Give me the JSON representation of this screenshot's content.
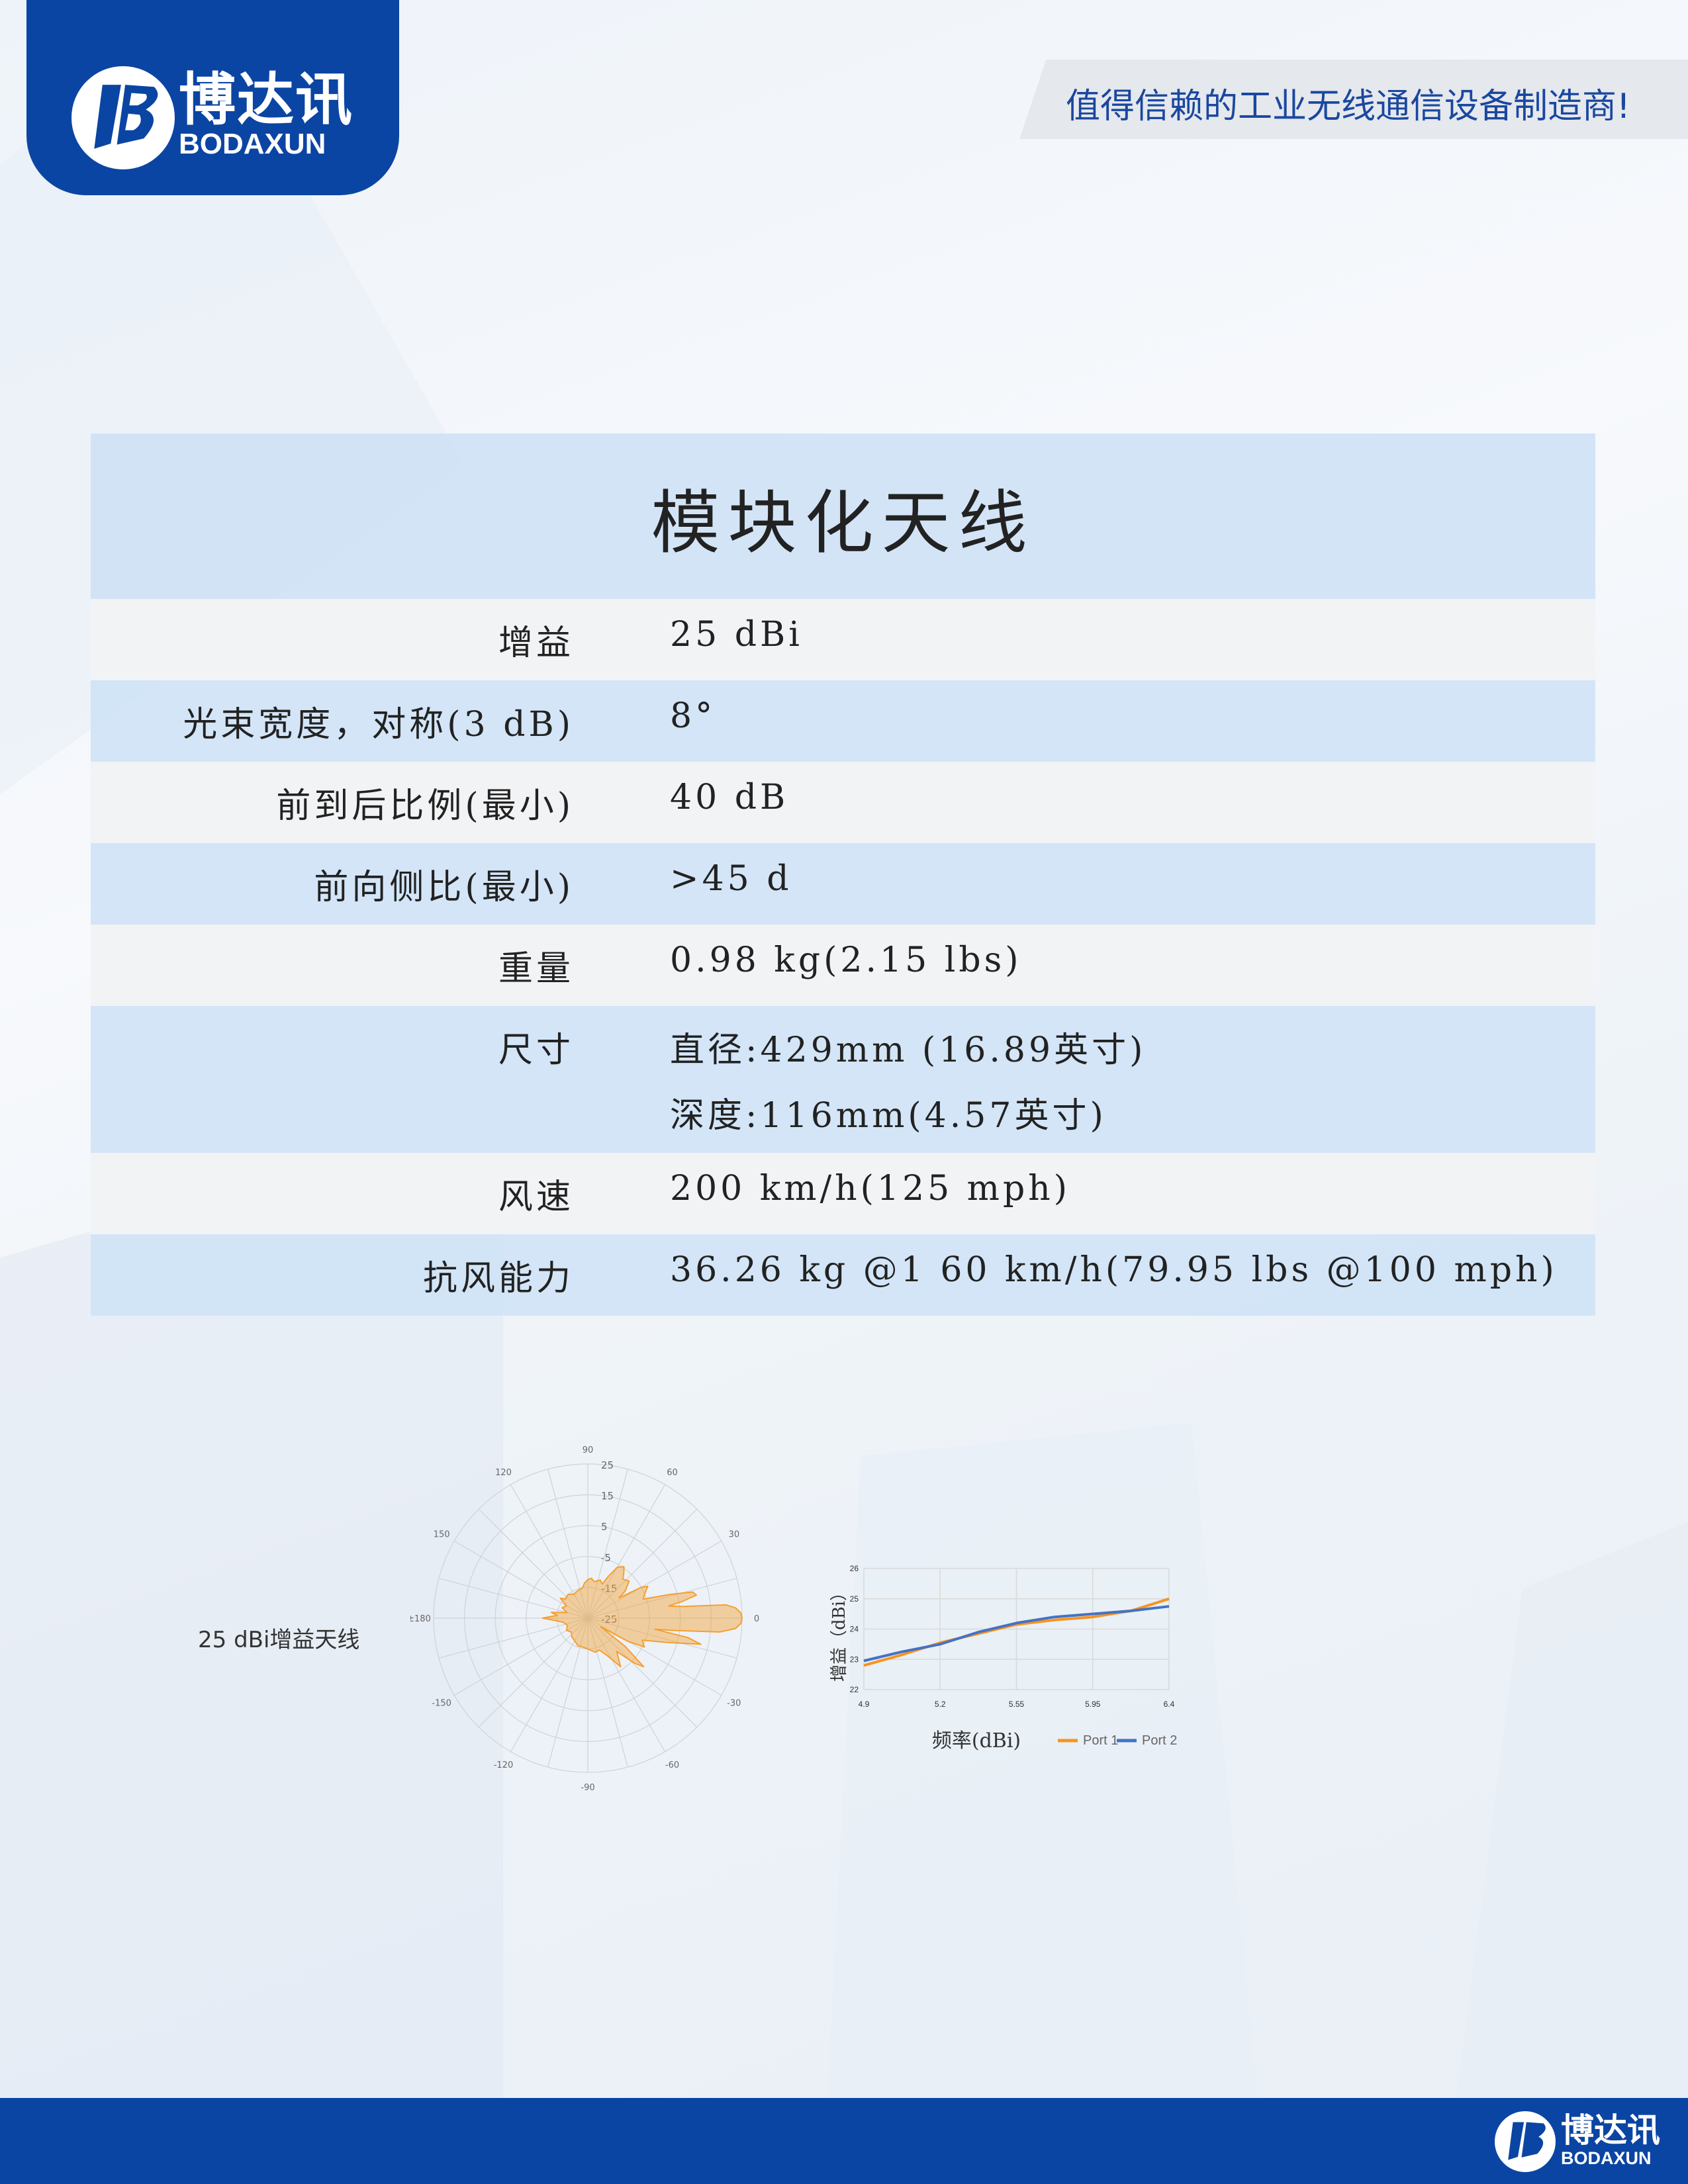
{
  "header": {
    "logo": {
      "cn": "博达讯",
      "en": "BODAXUN"
    },
    "tagline": "值得信赖的工业无线通信设备制造商!"
  },
  "spec_table": {
    "title": "模块化天线",
    "rows": [
      {
        "label": "增益",
        "values": [
          "25 dBi"
        ]
      },
      {
        "label": "光束宽度，对称(3 dB)",
        "values": [
          "8°"
        ]
      },
      {
        "label": "前到后比例(最小)",
        "values": [
          "40 dB"
        ]
      },
      {
        "label": "前向侧比(最小)",
        "values": [
          ">45 d"
        ]
      },
      {
        "label": "重量",
        "values": [
          "0.98 kg(2.15 lbs)"
        ]
      },
      {
        "label": "尺寸",
        "values": [
          "直径:429mm (16.89英寸)",
          "深度:116mm(4.57英寸)"
        ]
      },
      {
        "label": "风速",
        "values": [
          "200 km/h(125 mph)"
        ]
      },
      {
        "label": "抗风能力",
        "values": [
          "36.26 kg @1 60 km/h(79.95 lbs @100 mph)"
        ]
      }
    ]
  },
  "chart_data": [
    {
      "type": "polar",
      "caption": "25 dBi增益天线",
      "angle_ticks": [
        "90",
        "60",
        "30",
        "0",
        "-30",
        "-60",
        "-90",
        "-120",
        "-150",
        "±180",
        "150",
        "120"
      ],
      "radial_ticks": [
        "25",
        "15",
        "5",
        "-5",
        "-15",
        "-25"
      ],
      "rlim": [
        -25,
        25
      ],
      "color": "#f5a030",
      "points": [
        [
          0,
          25
        ],
        [
          2,
          24.6
        ],
        [
          4,
          23
        ],
        [
          5.5,
          20
        ],
        [
          7,
          6
        ],
        [
          8.5,
          1.5
        ],
        [
          10,
          6
        ],
        [
          12,
          11
        ],
        [
          14,
          10
        ],
        [
          16,
          3
        ],
        [
          19,
          -6
        ],
        [
          23,
          -5
        ],
        [
          28,
          -3
        ],
        [
          30,
          -5
        ],
        [
          33,
          -13
        ],
        [
          36,
          -10
        ],
        [
          42,
          -7
        ],
        [
          48,
          -8
        ],
        [
          52,
          -6
        ],
        [
          55,
          -4.6
        ],
        [
          60,
          -6
        ],
        [
          64,
          -10
        ],
        [
          67,
          -13
        ],
        [
          72,
          -12
        ],
        [
          80,
          -13
        ],
        [
          85,
          -12
        ],
        [
          90,
          -12.5
        ],
        [
          95,
          -13.5
        ],
        [
          100,
          -15
        ],
        [
          110,
          -15.5
        ],
        [
          120,
          -16
        ],
        [
          130,
          -15
        ],
        [
          140,
          -15.5
        ],
        [
          144,
          -14
        ],
        [
          150,
          -17
        ],
        [
          158,
          -16
        ],
        [
          165,
          -18
        ],
        [
          171,
          -13
        ],
        [
          175,
          -15
        ],
        [
          180,
          -10.3
        ],
        [
          -175,
          -15
        ],
        [
          -170,
          -17
        ],
        [
          -160,
          -18
        ],
        [
          -150,
          -17
        ],
        [
          -140,
          -18
        ],
        [
          -130,
          -17
        ],
        [
          -120,
          -16.5
        ],
        [
          -110,
          -15.5
        ],
        [
          -100,
          -15.5
        ],
        [
          -90,
          -15
        ],
        [
          -80,
          -14
        ],
        [
          -78,
          -13.7
        ],
        [
          -70,
          -14
        ],
        [
          -62,
          -11
        ],
        [
          -56,
          -6
        ],
        [
          -49,
          -10.7
        ],
        [
          -44,
          -4
        ],
        [
          -41,
          -1
        ],
        [
          -37,
          -10
        ],
        [
          -34,
          -20
        ],
        [
          -30,
          -10
        ],
        [
          -27,
          -4.4
        ],
        [
          -22,
          -6
        ],
        [
          -17,
          2
        ],
        [
          -13,
          12.6
        ],
        [
          -11,
          8
        ],
        [
          -9.4,
          -3
        ],
        [
          -8,
          4
        ],
        [
          -6,
          18
        ],
        [
          -4,
          23
        ],
        [
          -2,
          24.6
        ]
      ]
    },
    {
      "type": "line",
      "xlabel": "频率(dBi)",
      "ylabel": "增益（dBi）",
      "categories": [
        "4.9",
        "5.2",
        "5.55",
        "5.95",
        "6.4"
      ],
      "ylim": [
        22,
        26
      ],
      "yticks": [
        "22",
        "23",
        "24",
        "25",
        "26"
      ],
      "grid": true,
      "legend": "bottom-right",
      "series": [
        {
          "name": "Port 1",
          "color": "#f7941d",
          "x": [
            4.9,
            5.05,
            5.2,
            5.375,
            5.55,
            5.75,
            5.95,
            6.175,
            6.4
          ],
          "values": [
            22.8,
            23.15,
            23.55,
            23.85,
            24.15,
            24.3,
            24.4,
            24.6,
            25.0
          ]
        },
        {
          "name": "Port 2",
          "color": "#4472c4",
          "x": [
            4.9,
            5.05,
            5.2,
            5.375,
            5.55,
            5.75,
            5.95,
            6.175,
            6.4
          ],
          "values": [
            22.95,
            23.25,
            23.5,
            23.9,
            24.2,
            24.4,
            24.5,
            24.6,
            24.75
          ]
        }
      ]
    }
  ],
  "footer": {
    "logo": {
      "cn": "博达讯",
      "en": "BODAXUN"
    }
  },
  "colors": {
    "brand_blue": "#0b45a3",
    "tagline_text": "#1a47a0"
  }
}
